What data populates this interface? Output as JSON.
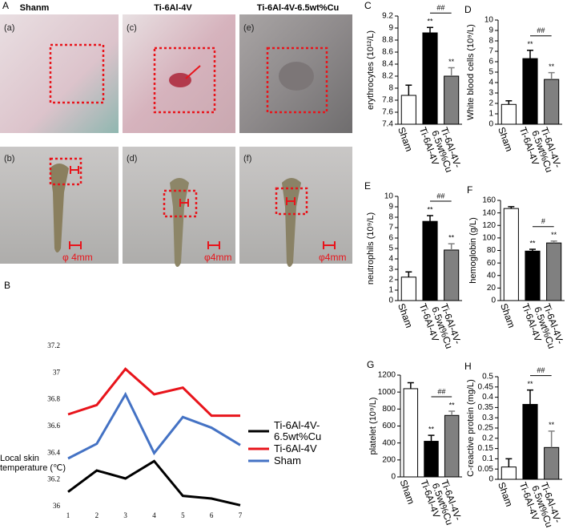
{
  "photos": {
    "letter": "A",
    "columns": [
      "Shanm",
      "Ti-6Al-4V",
      "Ti-6Al-4V-6.5wt%Cu"
    ],
    "top_labels": [
      "(a)",
      "(c)",
      "(e)"
    ],
    "bottom_labels": [
      "(b)",
      "(d)",
      "(f)"
    ],
    "scale_labels": [
      "φ 4mm",
      "φ4mm",
      "φ4mm"
    ]
  },
  "chart_data": [
    {
      "letter": "B",
      "type": "line",
      "y_label": "Local skin temperature (℃)",
      "x": [
        1,
        2,
        3,
        4,
        5,
        6,
        7
      ],
      "xlim": [
        1,
        7
      ],
      "xticks": [
        1,
        2,
        3,
        4,
        5,
        6,
        7
      ],
      "ylim": [
        36,
        37.2
      ],
      "yticks": [
        36,
        36.2,
        36.4,
        36.6,
        36.8,
        37,
        37.2
      ],
      "legend": "right",
      "series": [
        {
          "name": "Ti-6Al-4V-6.5wt%Cu",
          "color": "#000000",
          "values": [
            36.11,
            36.27,
            36.21,
            36.34,
            36.08,
            36.06,
            36.01
          ]
        },
        {
          "name": "Ti-6Al-4V",
          "color": "#e8141b",
          "values": [
            36.69,
            36.76,
            37.03,
            36.84,
            36.89,
            36.68,
            36.68
          ]
        },
        {
          "name": "Sham",
          "color": "#4472c4",
          "values": [
            36.36,
            36.47,
            36.84,
            36.4,
            36.67,
            36.59,
            36.46
          ]
        }
      ]
    },
    {
      "letter": "C",
      "type": "bar",
      "y_label": "erythrocytes (10¹²/L)",
      "categories": [
        "Sham",
        "Ti-6Al-4V",
        "Ti-6Al-4V-6.5wt%Cu"
      ],
      "colors": [
        "#ffffff",
        "#000000",
        "#808080"
      ],
      "values": [
        7.88,
        8.92,
        8.2
      ],
      "errors": [
        0.17,
        0.09,
        0.14
      ],
      "ylim": [
        7.4,
        9.2
      ],
      "yticks": [
        7.4,
        7.6,
        7.8,
        8,
        8.2,
        8.4,
        8.6,
        8.8,
        9,
        9.2
      ],
      "significance": [
        {
          "category": "Ti-6Al-4V",
          "label": "**"
        },
        {
          "category": "Ti-6Al-4V-6.5wt%Cu",
          "label": "**"
        }
      ],
      "bracket": {
        "from": "Ti-6Al-4V",
        "to": "Ti-6Al-4V-6.5wt%Cu",
        "label": "##"
      }
    },
    {
      "letter": "D",
      "type": "bar",
      "y_label": "White blood cells (10⁹/L)",
      "categories": [
        "Sham",
        "Ti-6Al-4V",
        "Ti-6Al-4V-6.5wt%Cu"
      ],
      "colors": [
        "#ffffff",
        "#000000",
        "#808080"
      ],
      "values": [
        1.9,
        6.3,
        4.3
      ],
      "errors": [
        0.35,
        0.8,
        0.65
      ],
      "ylim": [
        0,
        10
      ],
      "yticks": [
        0,
        1,
        2,
        3,
        4,
        5,
        6,
        7,
        8,
        9,
        10
      ],
      "significance": [
        {
          "category": "Ti-6Al-4V",
          "label": "**"
        },
        {
          "category": "Ti-6Al-4V-6.5wt%Cu",
          "label": "**"
        }
      ],
      "bracket": {
        "from": "Ti-6Al-4V",
        "to": "Ti-6Al-4V-6.5wt%Cu",
        "label": "##"
      }
    },
    {
      "letter": "E",
      "type": "bar",
      "y_label": "neutrophils (10⁹/L)",
      "categories": [
        "Sham",
        "Ti-6Al-4V",
        "Ti-6Al-4V-6.5wt%Cu"
      ],
      "colors": [
        "#ffffff",
        "#000000",
        "#808080"
      ],
      "values": [
        2.25,
        7.6,
        4.85
      ],
      "errors": [
        0.5,
        0.55,
        0.6
      ],
      "ylim": [
        0,
        10
      ],
      "yticks": [
        0,
        1,
        2,
        3,
        4,
        5,
        6,
        7,
        8,
        9,
        10
      ],
      "significance": [
        {
          "category": "Ti-6Al-4V",
          "label": "**"
        },
        {
          "category": "Ti-6Al-4V-6.5wt%Cu",
          "label": "**"
        }
      ],
      "bracket": {
        "from": "Ti-6Al-4V",
        "to": "Ti-6Al-4V-6.5wt%Cu",
        "label": "##"
      }
    },
    {
      "letter": "F",
      "type": "bar",
      "y_label": "hemoglobin (g/L)",
      "categories": [
        "Sham",
        "Ti-6Al-4V",
        "Ti-6Al-4V-6.5wt%Cu"
      ],
      "colors": [
        "#ffffff",
        "#000000",
        "#808080"
      ],
      "values": [
        147,
        79,
        92
      ],
      "errors": [
        3,
        3,
        3
      ],
      "ylim": [
        0,
        160
      ],
      "yticks": [
        0,
        20,
        40,
        60,
        80,
        100,
        120,
        140,
        160
      ],
      "significance": [
        {
          "category": "Ti-6Al-4V",
          "label": "**"
        },
        {
          "category": "Ti-6Al-4V-6.5wt%Cu",
          "label": "**"
        }
      ],
      "bracket": {
        "from": "Ti-6Al-4V",
        "to": "Ti-6Al-4V-6.5wt%Cu",
        "label": "#"
      }
    },
    {
      "letter": "G",
      "type": "bar",
      "y_label": "platelet (10⁹/L)",
      "categories": [
        "Sham",
        "Ti-6Al-4V",
        "Ti-6Al-4V-6.5wt%Cu"
      ],
      "colors": [
        "#ffffff",
        "#000000",
        "#808080"
      ],
      "values": [
        1040,
        420,
        725
      ],
      "errors": [
        70,
        70,
        50
      ],
      "ylim": [
        0,
        1200
      ],
      "yticks": [
        0,
        200,
        400,
        600,
        800,
        1000,
        1200
      ],
      "significance": [
        {
          "category": "Ti-6Al-4V",
          "label": "**"
        },
        {
          "category": "Ti-6Al-4V-6.5wt%Cu",
          "label": "**"
        }
      ],
      "bracket": {
        "from": "Ti-6Al-4V",
        "to": "Ti-6Al-4V-6.5wt%Cu",
        "label": "##"
      }
    },
    {
      "letter": "H",
      "type": "bar",
      "y_label": "C-reactive protein (mg/L)",
      "categories": [
        "Sham",
        "Ti-6Al-4V",
        "Ti-6Al-4V-6.5wt%Cu"
      ],
      "colors": [
        "#ffffff",
        "#000000",
        "#808080"
      ],
      "values": [
        0.06,
        0.365,
        0.155
      ],
      "errors": [
        0.04,
        0.07,
        0.08
      ],
      "ylim": [
        0,
        0.5
      ],
      "yticks": [
        0,
        0.05,
        0.1,
        0.15,
        0.2,
        0.25,
        0.3,
        0.35,
        0.4,
        0.45,
        0.5
      ],
      "significance": [
        {
          "category": "Ti-6Al-4V",
          "label": "**"
        },
        {
          "category": "Ti-6Al-4V-6.5wt%Cu",
          "label": "**"
        }
      ],
      "bracket": {
        "from": "Ti-6Al-4V",
        "to": "Ti-6Al-4V-6.5wt%Cu",
        "label": "##"
      }
    }
  ]
}
